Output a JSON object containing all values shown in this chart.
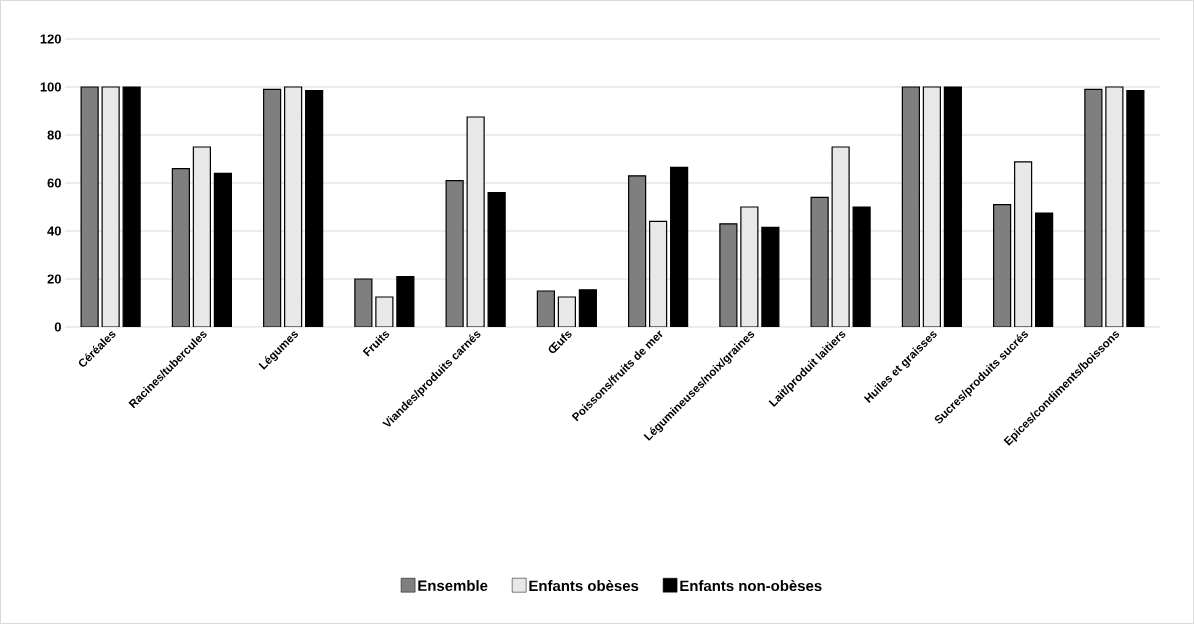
{
  "chart_data": {
    "type": "bar",
    "categories": [
      "Céréales",
      "Racines/tubercules",
      "Légumes",
      "Fruits",
      "Viandes/produits carnés",
      "Œufs",
      "Poissons/fruits de mer",
      "Légumineuses/noix/graines",
      "Lait/produit laitiers",
      "Huiles et graisses",
      "Sucres/produits sucrés",
      "Epices/condiments/boissons"
    ],
    "series": [
      {
        "name": "Ensemble",
        "color": "#7f7f7f",
        "values": [
          100,
          66,
          99,
          20,
          61,
          15,
          63,
          43,
          54,
          100,
          51,
          99
        ]
      },
      {
        "name": "Enfants obèses",
        "color": "#e8e8e8",
        "values": [
          100,
          75,
          100,
          12.5,
          87.5,
          12.5,
          44,
          50,
          75,
          100,
          68.8,
          100
        ]
      },
      {
        "name": "Enfants non-obèses",
        "color": "#000000",
        "values": [
          100,
          64,
          98.5,
          21,
          56,
          15.5,
          66.5,
          41.5,
          50,
          100,
          47.5,
          98.5
        ]
      }
    ],
    "ylim": [
      0,
      120
    ],
    "yticks": [
      0,
      20,
      40,
      60,
      80,
      100,
      120
    ],
    "grid": "y",
    "legend": "bottom"
  }
}
